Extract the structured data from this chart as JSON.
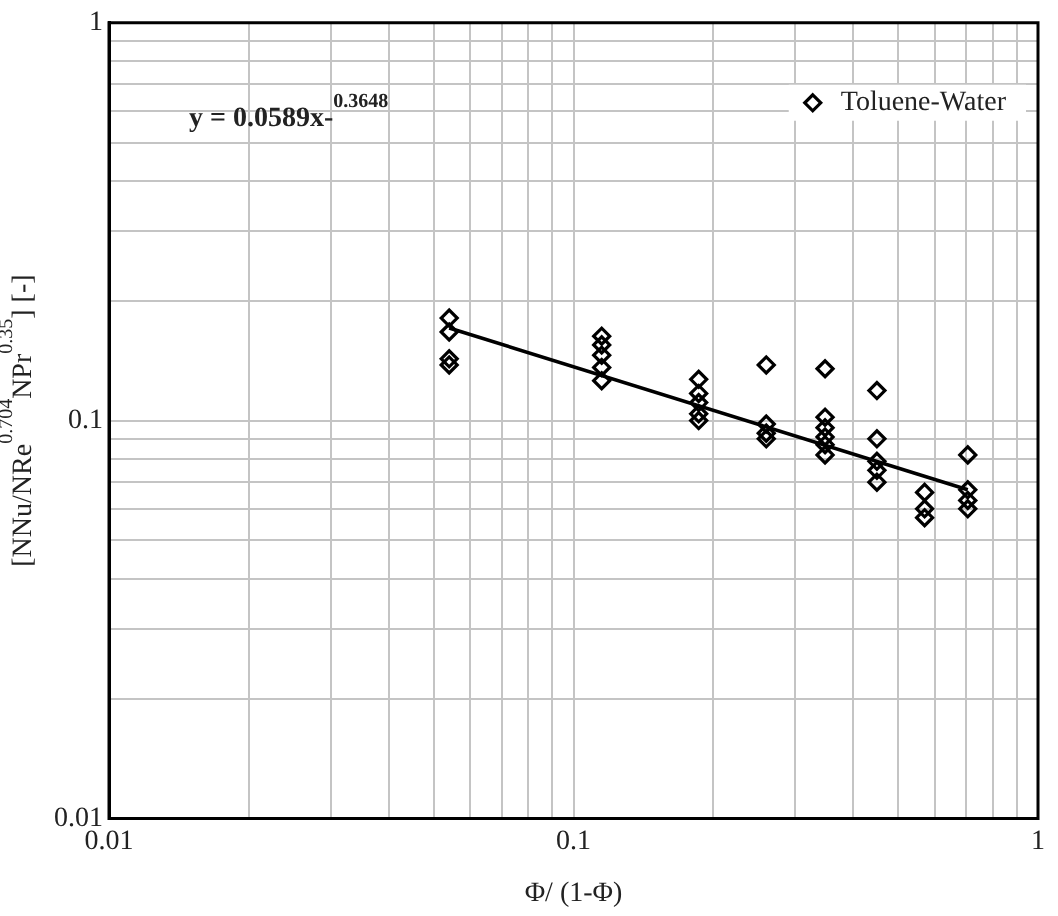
{
  "chart_data": {
    "type": "scatter",
    "xlabel": "Φ/ (1-Φ)",
    "ylabel": "[NNu/NRe$^{0.704}$NPr$^{0.35}$] [-]",
    "log": "xy",
    "grid": true,
    "legend": "top right",
    "xlim": [
      0.01,
      1
    ],
    "ylim": [
      0.01,
      1
    ],
    "xticks": [
      0.01,
      {
        "value": 0.02,
        "label": null
      },
      {
        "value": 0.03,
        "label": null
      },
      {
        "value": 0.04,
        "label": null
      },
      {
        "value": 0.05,
        "label": null
      },
      {
        "value": 0.06,
        "label": null
      },
      {
        "value": 0.07,
        "label": null
      },
      {
        "value": 0.08,
        "label": null
      },
      {
        "value": 0.09,
        "label": null
      },
      0.1,
      {
        "value": 0.2,
        "label": null
      },
      {
        "value": 0.3,
        "label": null
      },
      {
        "value": 0.4,
        "label": null
      },
      {
        "value": 0.5,
        "label": null
      },
      {
        "value": 0.6,
        "label": null
      },
      {
        "value": 0.7,
        "label": null
      },
      {
        "value": 0.8,
        "label": null
      },
      {
        "value": 0.9,
        "label": null
      },
      1
    ],
    "yticks": [
      0.01,
      {
        "value": 0.02,
        "label": null
      },
      {
        "value": 0.03,
        "label": null
      },
      {
        "value": 0.04,
        "label": null
      },
      {
        "value": 0.05,
        "label": null
      },
      {
        "value": 0.06,
        "label": null
      },
      {
        "value": 0.07,
        "label": null
      },
      {
        "value": 0.08,
        "label": null
      },
      {
        "value": 0.09,
        "label": null
      },
      0.1,
      {
        "value": 0.2,
        "label": null
      },
      {
        "value": 0.3,
        "label": null
      },
      {
        "value": 0.4,
        "label": null
      },
      {
        "value": 0.5,
        "label": null
      },
      {
        "value": 0.6,
        "label": null
      },
      {
        "value": 0.7,
        "label": null
      },
      {
        "value": 0.8,
        "label": null
      },
      {
        "value": 0.9,
        "label": null
      },
      1
    ],
    "annotations": [
      "y = 0.0589x-$^{0.3648}$"
    ],
    "series": [
      {
        "name": "Toluene-Water",
        "color": "#000000",
        "marker": "diamond",
        "x": [
          0.054,
          0.054,
          0.054,
          0.054,
          0.115,
          0.115,
          0.115,
          0.115,
          0.115,
          0.186,
          0.186,
          0.186,
          0.186,
          0.186,
          0.26,
          0.26,
          0.26,
          0.26,
          0.348,
          0.348,
          0.348,
          0.348,
          0.348,
          0.348,
          0.45,
          0.45,
          0.45,
          0.45,
          0.45,
          0.57,
          0.57,
          0.57,
          0.706,
          0.706,
          0.706,
          0.706
        ],
        "values": [
          0.181,
          0.167,
          0.143,
          0.138,
          0.163,
          0.155,
          0.146,
          0.136,
          0.126,
          0.127,
          0.117,
          0.111,
          0.104,
          0.1,
          0.138,
          0.098,
          0.093,
          0.09,
          0.135,
          0.102,
          0.096,
          0.091,
          0.087,
          0.082,
          0.119,
          0.09,
          0.079,
          0.075,
          0.07,
          0.066,
          0.06,
          0.057,
          0.082,
          0.067,
          0.063,
          0.06
        ]
      },
      {
        "type": "line",
        "color": "#000000",
        "marker": "none",
        "x": [
          0.054,
          0.706
        ],
        "values": [
          0.171,
          0.067
        ]
      }
    ]
  }
}
